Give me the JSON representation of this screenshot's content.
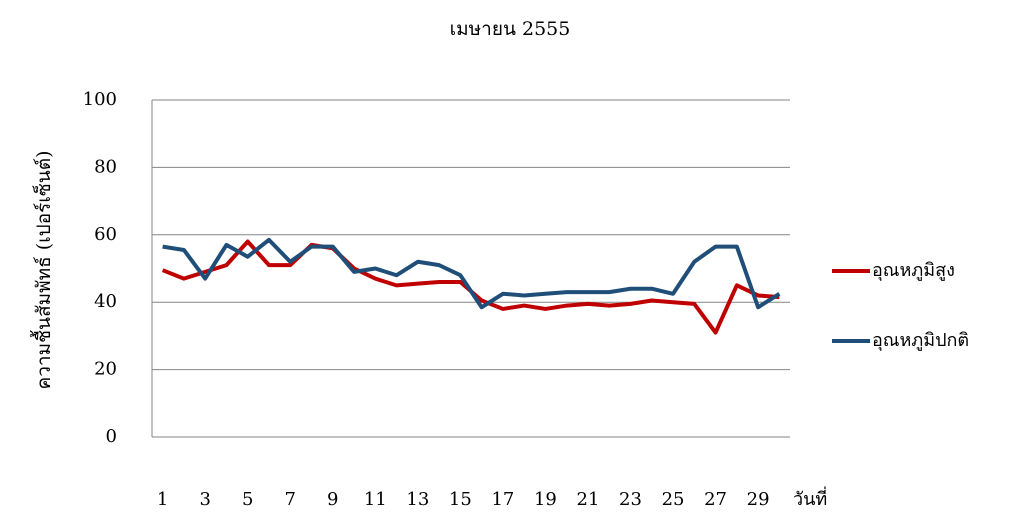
{
  "chart_data": {
    "type": "line",
    "title": "เมษายน 2555",
    "y_label": "ความชื้นสัมพัทธ์ (เปอร์เซ็นต์)",
    "x_label": "วันที่",
    "categories": [
      1,
      null,
      3,
      null,
      5,
      null,
      7,
      null,
      9,
      null,
      11,
      null,
      13,
      null,
      15,
      null,
      17,
      null,
      19,
      null,
      21,
      null,
      23,
      null,
      25,
      null,
      27,
      null,
      29,
      null
    ],
    "series": [
      {
        "name": "อุณหภูมิสูง",
        "color": "#c00000",
        "values": [
          49.5,
          47,
          49,
          51,
          58,
          51,
          51,
          57,
          56,
          50,
          47,
          45,
          45.5,
          46,
          46,
          40.5,
          38,
          39,
          38,
          39,
          39.5,
          39,
          39.5,
          40.5,
          40,
          39.5,
          31,
          45,
          42,
          41.5
        ]
      },
      {
        "name": "อุณหภูมิปกติ",
        "color": "#1f4e79",
        "values": [
          56.5,
          55.5,
          47,
          57,
          53.5,
          58.5,
          52,
          56.5,
          56.5,
          49,
          50,
          48,
          52,
          51,
          48,
          38.5,
          42.5,
          42,
          42.5,
          43,
          43,
          43,
          44,
          44,
          42.5,
          52,
          56.5,
          56.5,
          38.5,
          42.5
        ]
      }
    ],
    "ylim": [
      0,
      100
    ],
    "yticks": [
      0,
      20,
      40,
      60,
      80,
      100
    ],
    "grid": true,
    "legend": "right"
  }
}
